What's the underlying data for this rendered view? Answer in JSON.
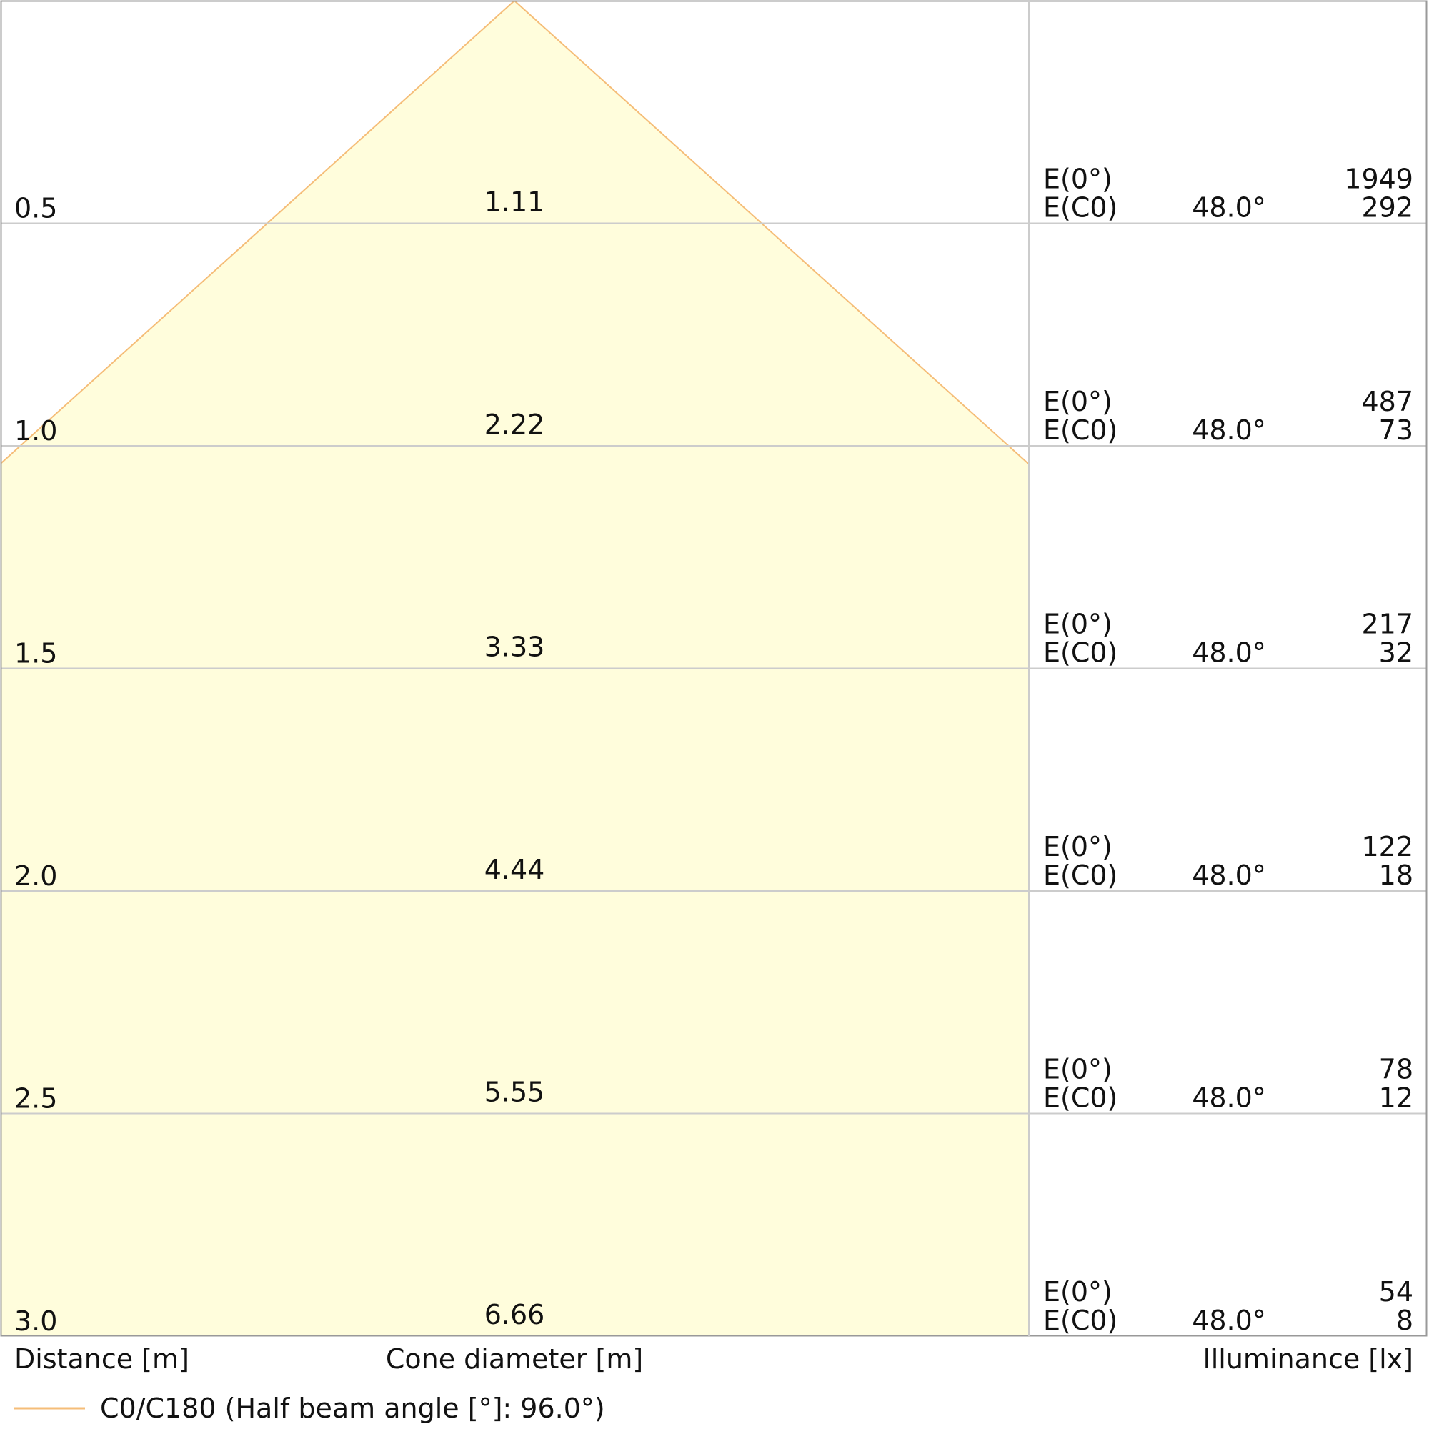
{
  "chart_data": {
    "type": "cone",
    "x_label": "Distance [m]",
    "diameter_label": "Cone diameter [m]",
    "value_label": "Illuminance [lx]",
    "legend": "C0/C180 (Half beam angle [°]: 96.0°)",
    "color": "#f5bd78",
    "ylim": [
      0,
      3
    ],
    "e0_label": "E(0°)",
    "ec0_label": "E(C0)",
    "rows": [
      {
        "distance": 0.5,
        "diameter": 1.11,
        "angle": "48.0°",
        "e0": 1949,
        "ec0": 292
      },
      {
        "distance": {
          "value": 1,
          "label": "1.0"
        },
        "diameter": 2.22,
        "angle": "48.0°",
        "e0": 487,
        "ec0": 73
      },
      {
        "distance": 1.5,
        "diameter": 3.33,
        "angle": "48.0°",
        "e0": 217,
        "ec0": 32
      },
      {
        "distance": {
          "value": 2,
          "label": "2.0"
        },
        "diameter": 4.44,
        "angle": "48.0°",
        "e0": 122,
        "ec0": 18
      },
      {
        "distance": 2.5,
        "diameter": 5.55,
        "angle": "48.0°",
        "e0": 78,
        "ec0": 12
      },
      {
        "distance": {
          "value": 3,
          "label": "3.0"
        },
        "diameter": 6.66,
        "angle": "48.0°",
        "e0": 54,
        "ec0": 8
      }
    ]
  }
}
